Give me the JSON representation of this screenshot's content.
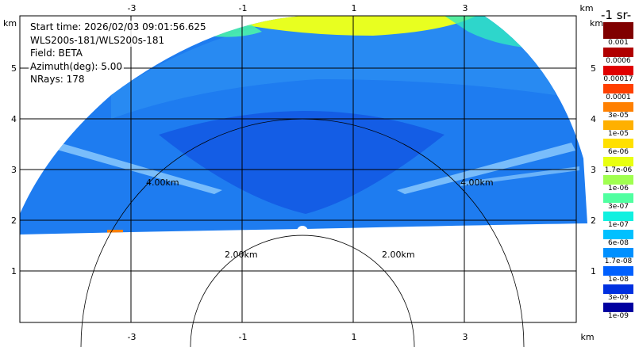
{
  "info": {
    "start_time": "Start time: 2026/02/03 09:01:56.625",
    "instrument": "WLS200s-181/WLS200s-181",
    "field": "Field: BETA",
    "azimuth": "Azimuth(deg): 5.00",
    "nrays": "NRays: 178"
  },
  "axes": {
    "x_ticks": [
      "-3",
      "-1",
      "1",
      "3"
    ],
    "y_ticks": [
      "1",
      "2",
      "3",
      "4",
      "5"
    ],
    "unit": "km"
  },
  "range_rings": [
    "2.00km",
    "2.00km",
    "4.00km",
    "4.00km"
  ],
  "colorbar": {
    "title": "-1 sr-",
    "labels": [
      "0.001",
      "0.0006",
      "0.00017",
      "0.0001",
      "3e-05",
      "1e-05",
      "6e-06",
      "1.7e-06",
      "1e-06",
      "3e-07",
      "1e-07",
      "6e-08",
      "1.7e-08",
      "1e-08",
      "3e-09",
      "1e-09"
    ],
    "colors": [
      "#800000",
      "#b00000",
      "#e00000",
      "#ff4000",
      "#ff8000",
      "#ffb000",
      "#ffe000",
      "#e8ff10",
      "#a0ff50",
      "#50ffa0",
      "#10f0e0",
      "#00c0ff",
      "#0090ff",
      "#0060ff",
      "#0030e0",
      "#0000a0"
    ]
  }
}
